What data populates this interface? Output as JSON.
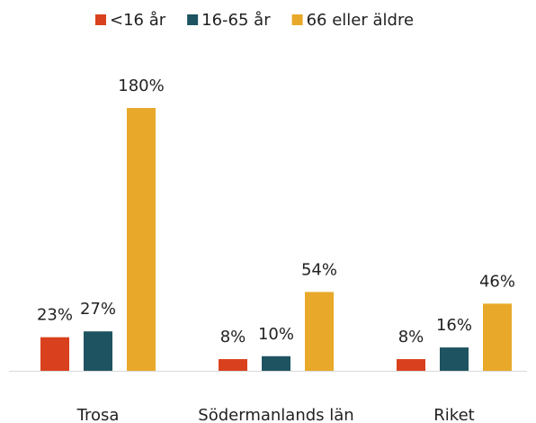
{
  "chart_data": {
    "type": "bar",
    "categories": [
      "Trosa",
      "Södermanlands län",
      "Riket"
    ],
    "series": [
      {
        "name": "<16 år",
        "color": "#d9411e",
        "values": [
          23,
          8,
          8
        ],
        "value_labels": [
          "23%",
          "8%",
          "8%"
        ]
      },
      {
        "name": "16-65 år",
        "color": "#1e5461",
        "values": [
          27,
          10,
          16
        ],
        "value_labels": [
          "27%",
          "10%",
          "16%"
        ]
      },
      {
        "name": "66 eller äldre",
        "color": "#e8a92a",
        "values": [
          180,
          54,
          46
        ],
        "value_labels": [
          "180%",
          "54%",
          "46%"
        ]
      }
    ],
    "legend": "top"
  }
}
